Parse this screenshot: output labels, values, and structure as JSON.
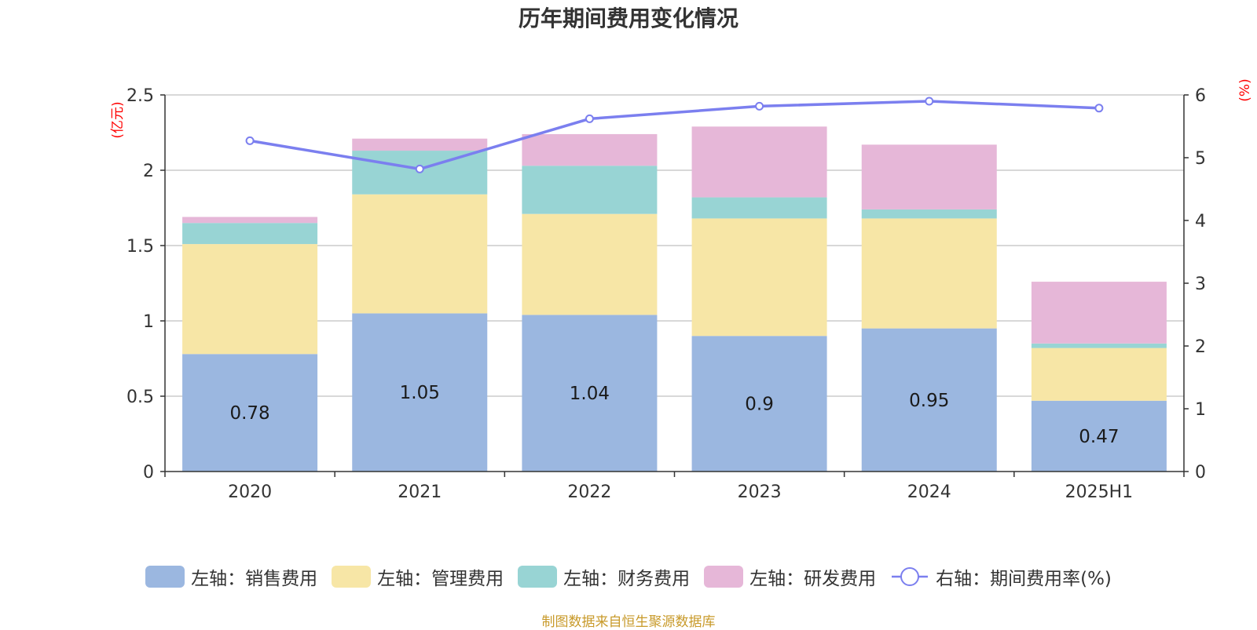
{
  "title": "历年期间费用变化情况",
  "source": "制图数据来自恒生聚源数据库",
  "colors": {
    "sales": "#9bb7e0",
    "admin": "#f7e6a6",
    "finance": "#98d4d4",
    "rnd": "#e6b7d8",
    "rate_line": "#7b7fef",
    "unit_text": "#ff0000",
    "source_text": "#c89a2a",
    "axis": "#333333",
    "grid": "#cccccc"
  },
  "chart_data": {
    "type": "bar",
    "stacked": true,
    "title": "历年期间费用变化情况",
    "categories": [
      "2020",
      "2021",
      "2022",
      "2023",
      "2024",
      "2025H1"
    ],
    "left_axis": {
      "unit": "(亿元)",
      "ylim": [
        0,
        2.5
      ],
      "ticks": [
        "0",
        "0.5",
        "1",
        "1.5",
        "2",
        "2.5"
      ]
    },
    "right_axis": {
      "unit": "(%)",
      "ylim": [
        0,
        6
      ],
      "ticks": [
        "0",
        "1",
        "2",
        "3",
        "4",
        "5",
        "6"
      ]
    },
    "series": [
      {
        "name": "左轴：销售费用",
        "key": "sales",
        "axis": "left",
        "type": "bar",
        "values": [
          0.78,
          1.05,
          1.04,
          0.9,
          0.95,
          0.47
        ],
        "data_labels": [
          "0.78",
          "1.05",
          "1.04",
          "0.9",
          "0.95",
          "0.47"
        ]
      },
      {
        "name": "左轴：管理费用",
        "key": "admin",
        "axis": "left",
        "type": "bar",
        "values": [
          0.73,
          0.79,
          0.67,
          0.78,
          0.73,
          0.35
        ]
      },
      {
        "name": "左轴：财务费用",
        "key": "finance",
        "axis": "left",
        "type": "bar",
        "values": [
          0.14,
          0.29,
          0.32,
          0.14,
          0.06,
          0.03
        ]
      },
      {
        "name": "左轴：研发费用",
        "key": "rnd",
        "axis": "left",
        "type": "bar",
        "values": [
          0.04,
          0.08,
          0.21,
          0.47,
          0.43,
          0.41
        ]
      },
      {
        "name": "右轴：期间费用率(%)",
        "key": "rate_line",
        "axis": "right",
        "type": "line",
        "values": [
          5.27,
          4.82,
          5.62,
          5.82,
          5.9,
          5.79
        ]
      }
    ],
    "grid": true,
    "legend_position": "bottom"
  }
}
